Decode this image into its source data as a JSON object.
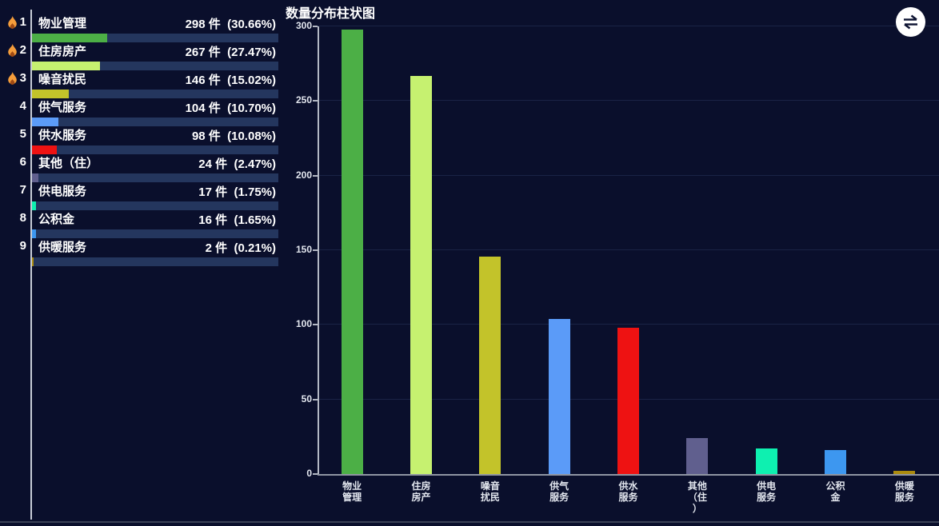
{
  "theme": {
    "background": "#0a0f2c",
    "track": "#24365e",
    "grid_line": "#1a2345",
    "axis_line": "#b3b8c4",
    "separator": "#c7ccd7",
    "text_primary": "#ffffff",
    "flame": "#f59d3b",
    "flame_core": "#a04a14",
    "icon_circle": "#ffffff",
    "icon_glyph": "#0c1231"
  },
  "ranking": {
    "items": [
      {
        "rank": "1",
        "hot": true,
        "name": "物业管理",
        "count_label": "298 件  (30.66%)",
        "percent": 30.66,
        "color": "#4caf46"
      },
      {
        "rank": "2",
        "hot": true,
        "name": "住房房产",
        "count_label": "267 件  (27.47%)",
        "percent": 27.47,
        "color": "#c6f170"
      },
      {
        "rank": "3",
        "hot": true,
        "name": "噪音扰民",
        "count_label": "146 件  (15.02%)",
        "percent": 15.02,
        "color": "#c3c32a"
      },
      {
        "rank": "4",
        "hot": false,
        "name": "供气服务",
        "count_label": "104 件  (10.70%)",
        "percent": 10.7,
        "color": "#5b9bf8"
      },
      {
        "rank": "5",
        "hot": false,
        "name": "供水服务",
        "count_label": "98 件  (10.08%)",
        "percent": 10.08,
        "color": "#ee1212"
      },
      {
        "rank": "6",
        "hot": false,
        "name": "其他（住）",
        "count_label": "24 件  (2.47%)",
        "percent": 2.47,
        "color": "#605f8e"
      },
      {
        "rank": "7",
        "hot": false,
        "name": "供电服务",
        "count_label": "17 件  (1.75%)",
        "percent": 1.75,
        "color": "#0ef0b0"
      },
      {
        "rank": "8",
        "hot": false,
        "name": "公积金",
        "count_label": "16 件  (1.65%)",
        "percent": 1.65,
        "color": "#3d97f0"
      },
      {
        "rank": "9",
        "hot": false,
        "name": "供暖服务",
        "count_label": "2 件  (0.21%)",
        "percent": 0.21,
        "color": "#ab8b0e"
      }
    ]
  },
  "chart": {
    "title": "数量分布柱状图",
    "toolbox_icon": "swap-arrows-icon",
    "y_ticks": [
      0,
      50,
      100,
      150,
      200,
      250,
      300
    ],
    "x_label_lines": [
      [
        "物业",
        "管理"
      ],
      [
        "住房",
        "房产"
      ],
      [
        "噪音",
        "扰民"
      ],
      [
        "供气",
        "服务"
      ],
      [
        "供水",
        "服务"
      ],
      [
        "其他",
        "（住",
        "）"
      ],
      [
        "供电",
        "服务"
      ],
      [
        "公积",
        "金"
      ],
      [
        "供暖",
        "服务"
      ]
    ]
  },
  "chart_data": {
    "type": "bar",
    "title": "数量分布柱状图",
    "categories": [
      "物业管理",
      "住房房产",
      "噪音扰民",
      "供气服务",
      "供水服务",
      "其他（住）",
      "供电服务",
      "公积金",
      "供暖服务"
    ],
    "values": [
      298,
      267,
      146,
      104,
      98,
      24,
      17,
      16,
      2
    ],
    "percentages": [
      30.66,
      27.47,
      15.02,
      10.7,
      10.08,
      2.47,
      1.75,
      1.65,
      0.21
    ],
    "unit": "件",
    "colors": [
      "#4caf46",
      "#c6f170",
      "#c3c32a",
      "#5b9bf8",
      "#ee1212",
      "#605f8e",
      "#0ef0b0",
      "#3d97f0",
      "#ab8b0e"
    ],
    "xlabel": "",
    "ylabel": "",
    "ylim": [
      0,
      300
    ],
    "grid": true,
    "legend": null
  }
}
